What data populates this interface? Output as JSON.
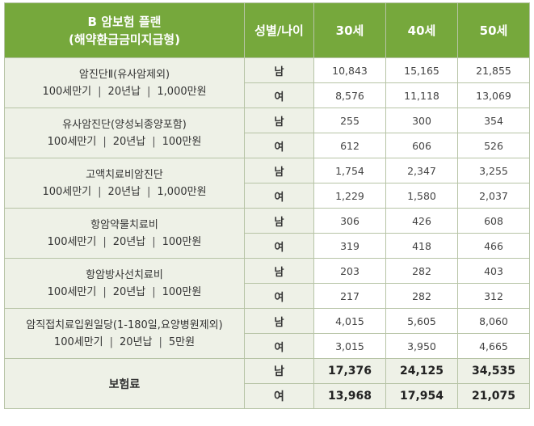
{
  "header": {
    "title_line1": "B 암보험 플랜",
    "title_line2": "(해약환급금미지급형)",
    "gender_age": "성별/나이",
    "ages": [
      "30세",
      "40세",
      "50세"
    ]
  },
  "rows": [
    {
      "name": "암진단Ⅱ(유사암제외)",
      "term1": "100세만기",
      "term2": "20년납",
      "amount": "1,000만원",
      "male": [
        "10,843",
        "15,165",
        "21,855"
      ],
      "female": [
        "8,576",
        "11,118",
        "13,069"
      ]
    },
    {
      "name": "유사암진단(양성뇌종양포함)",
      "term1": "100세만기",
      "term2": "20년납",
      "amount": "100만원",
      "male": [
        "255",
        "300",
        "354"
      ],
      "female": [
        "612",
        "606",
        "526"
      ]
    },
    {
      "name": "고액치료비암진단",
      "term1": "100세만기",
      "term2": "20년납",
      "amount": "1,000만원",
      "male": [
        "1,754",
        "2,347",
        "3,255"
      ],
      "female": [
        "1,229",
        "1,580",
        "2,037"
      ]
    },
    {
      "name": "항암약물치료비",
      "term1": "100세만기",
      "term2": "20년납",
      "amount": "100만원",
      "male": [
        "306",
        "426",
        "608"
      ],
      "female": [
        "319",
        "418",
        "466"
      ]
    },
    {
      "name": "항암방사선치료비",
      "term1": "100세만기",
      "term2": "20년납",
      "amount": "100만원",
      "male": [
        "203",
        "282",
        "403"
      ],
      "female": [
        "217",
        "282",
        "312"
      ]
    },
    {
      "name": "암직접치료입원일당(1-180일,요양병원제외)",
      "term1": "100세만기",
      "term2": "20년납",
      "amount": "5만원",
      "male": [
        "4,015",
        "5,605",
        "8,060"
      ],
      "female": [
        "3,015",
        "3,950",
        "4,665"
      ]
    }
  ],
  "labels": {
    "male": "남",
    "female": "여",
    "separator": "|"
  },
  "premium": {
    "label": "보험료",
    "male": [
      "17,376",
      "24,125",
      "34,535"
    ],
    "female": [
      "13,968",
      "17,954",
      "21,075"
    ]
  },
  "colors": {
    "header_bg": "#76a83c",
    "label_bg": "#eef1e7",
    "border": "#b7c4a6"
  }
}
